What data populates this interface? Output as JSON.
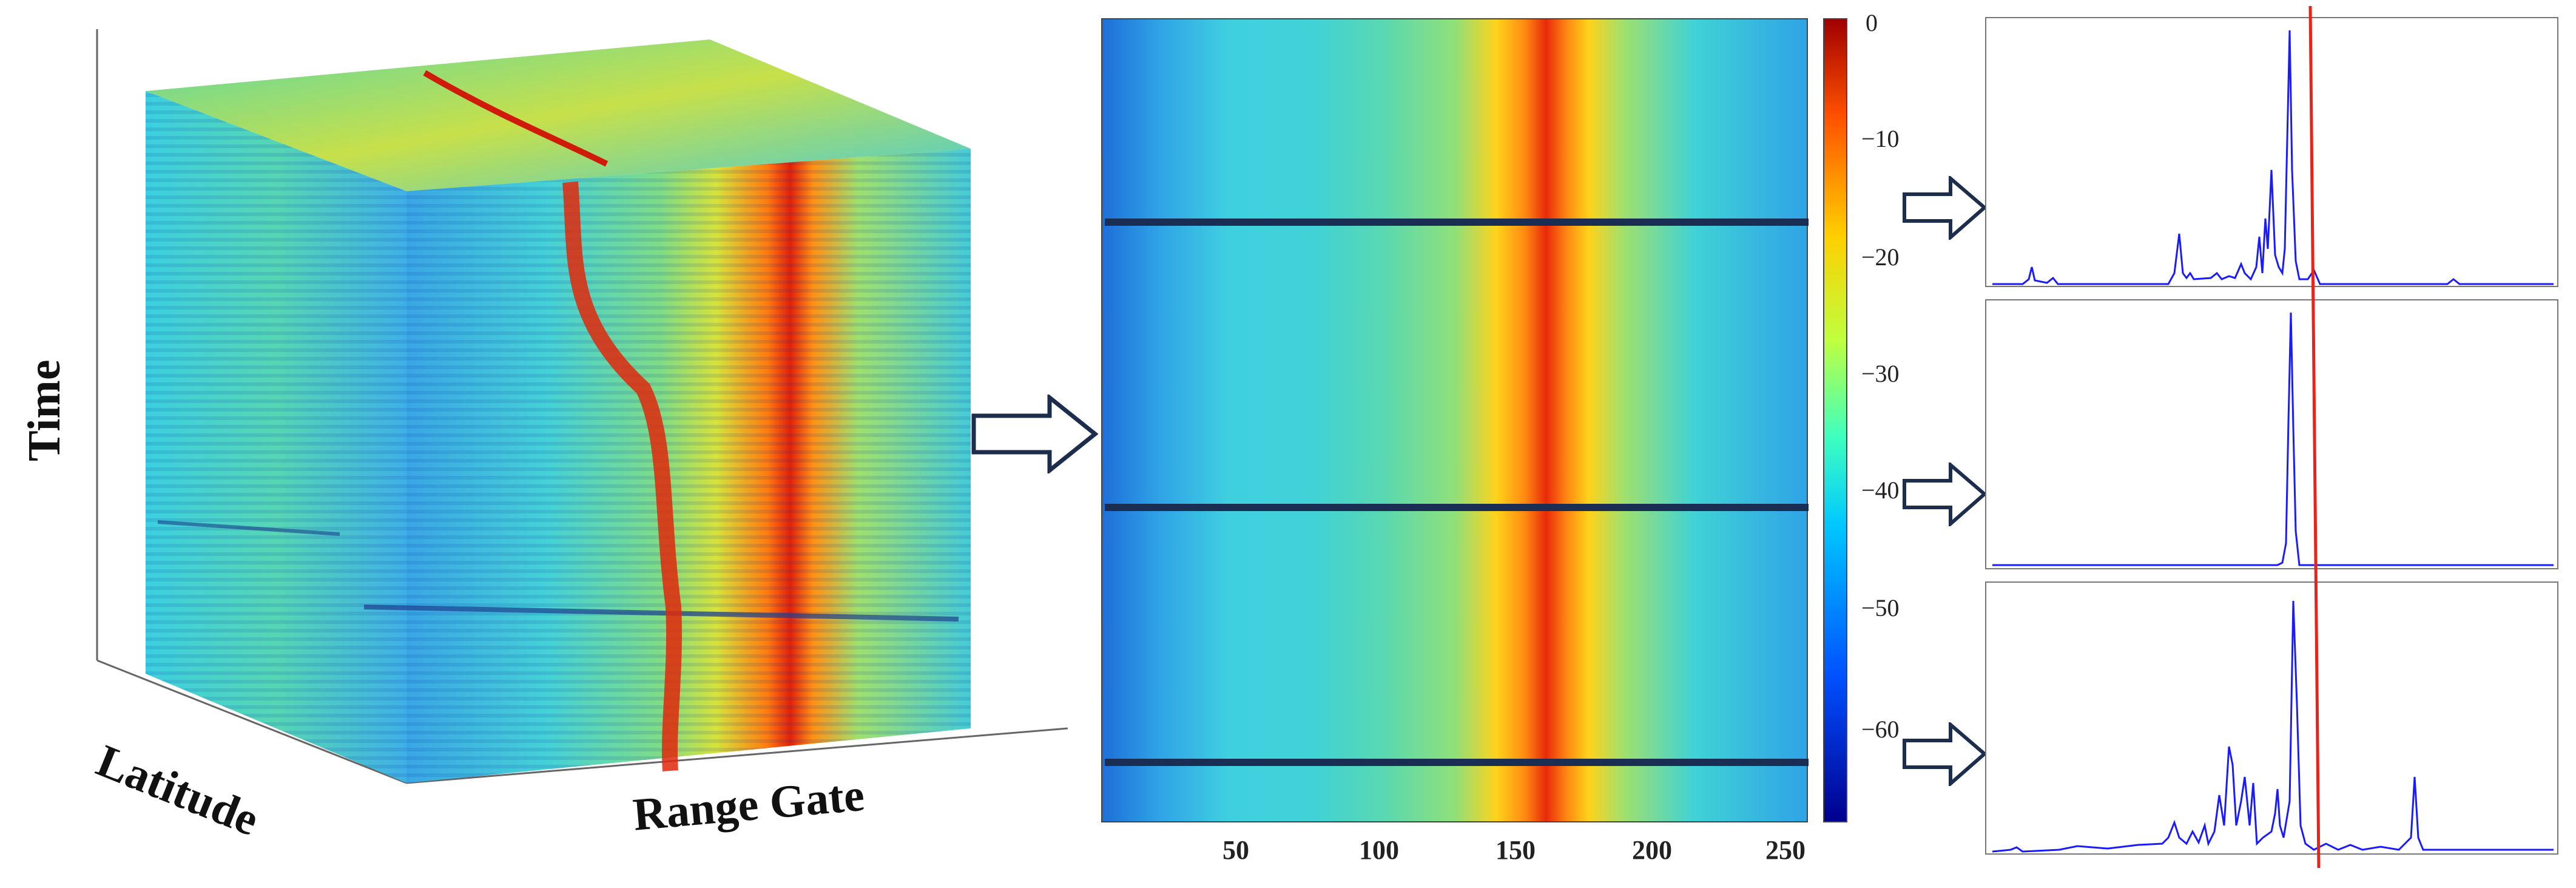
{
  "left_cube": {
    "time_label": "Time",
    "latitude_label": "Latitude",
    "range_gate_label": "Range Gate"
  },
  "middle_heatmap": {
    "x_ticks": [
      "50",
      "100",
      "150",
      "200",
      "250"
    ],
    "colorbar_ticks": [
      "0",
      "−10",
      "−20",
      "−30",
      "−40",
      "−50",
      "−60"
    ],
    "colormap": [
      "#00008f",
      "#0050ff",
      "#00c8ff",
      "#3fffbf",
      "#bfff3f",
      "#ffcf00",
      "#ff5000",
      "#a00000"
    ]
  },
  "chart_data": {
    "type": "heatmap",
    "xlim": [
      1,
      256
    ],
    "x_ticks": [
      50,
      100,
      150,
      200,
      250
    ],
    "color_range": [
      -68,
      0
    ],
    "colorbar_ticks": [
      0,
      -10,
      -20,
      -30,
      -40,
      -50,
      -60
    ]
  },
  "waveform_colors": {
    "line": "#1a1aff",
    "marker": "#e8231a"
  }
}
